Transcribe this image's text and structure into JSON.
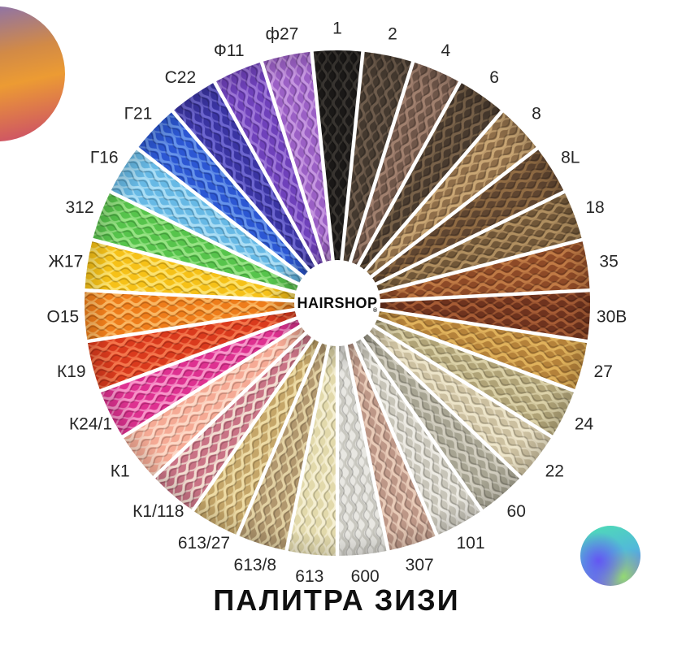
{
  "page_title": "ПАЛИТРА ЗИЗИ",
  "center_logo": {
    "text": "HAIRSHOP",
    "trademark": "®"
  },
  "chart_data": {
    "type": "pie",
    "title": "ПАЛИТРА ЗИЗИ",
    "center_label": "HAIRSHOP",
    "layout": {
      "start_angle_deg": -90,
      "direction": "clockwise",
      "equal_slices": true,
      "inner_radius_px": 53,
      "outer_radius_px": 311,
      "label_position": "outside",
      "gap_color": "#ffffff"
    },
    "segments": [
      {
        "label": "1",
        "color": "#1a1817",
        "highlight": "#383430"
      },
      {
        "label": "2",
        "color": "#44392f",
        "highlight": "#6e5c4c"
      },
      {
        "label": "4",
        "color": "#6f5649",
        "highlight": "#a1806e"
      },
      {
        "label": "6",
        "color": "#483a2e",
        "highlight": "#786149"
      },
      {
        "label": "8",
        "color": "#8f6e49",
        "highlight": "#c9a674"
      },
      {
        "label": "8L",
        "color": "#5f4530",
        "highlight": "#916c44"
      },
      {
        "label": "18",
        "color": "#715738",
        "highlight": "#b08f60"
      },
      {
        "label": "35",
        "color": "#8e4a27",
        "highlight": "#c07a45"
      },
      {
        "label": "30B",
        "color": "#6f331e",
        "highlight": "#a65c35"
      },
      {
        "label": "27",
        "color": "#b5823a",
        "highlight": "#e0b25c"
      },
      {
        "label": "24",
        "color": "#b0a377",
        "highlight": "#dbd1a8"
      },
      {
        "label": "22",
        "color": "#ccc0a0",
        "highlight": "#ede5ca"
      },
      {
        "label": "60",
        "color": "#a7a492",
        "highlight": "#d2cec0"
      },
      {
        "label": "101",
        "color": "#c8c5b9",
        "highlight": "#edebe4"
      },
      {
        "label": "307",
        "color": "#bd9787",
        "highlight": "#e9ccb9"
      },
      {
        "label": "600",
        "color": "#e8e7e2",
        "highlight": "#c8c7bf"
      },
      {
        "label": "613",
        "color": "#e2d9ab",
        "highlight": "#f5efd2"
      },
      {
        "label": "613/8",
        "color": "#b1976e",
        "highlight": "#e3d2a4"
      },
      {
        "label": "613/27",
        "color": "#c5a669",
        "highlight": "#eedca6"
      },
      {
        "label": "К1/118",
        "color": "#c97385",
        "highlight": "#f3ded2"
      },
      {
        "label": "К1",
        "color": "#f5aa95",
        "highlight": "#fdd8c6"
      },
      {
        "label": "К24/1",
        "color": "#de3190",
        "highlight": "#f795c9"
      },
      {
        "label": "К19",
        "color": "#da3a1d",
        "highlight": "#f4764c"
      },
      {
        "label": "О15",
        "color": "#ee7d1b",
        "highlight": "#fab662"
      },
      {
        "label": "Ж17",
        "color": "#f6c118",
        "highlight": "#fce26e"
      },
      {
        "label": "312",
        "color": "#57c44c",
        "highlight": "#97e384"
      },
      {
        "label": "Г16",
        "color": "#67b9e5",
        "highlight": "#abdef5"
      },
      {
        "label": "Г21",
        "color": "#2c57d3",
        "highlight": "#6693ea"
      },
      {
        "label": "С22",
        "color": "#3a34a2",
        "highlight": "#6d66d0"
      },
      {
        "label": "Ф11",
        "color": "#6f41bb",
        "highlight": "#9d76d8"
      },
      {
        "label": "ф27",
        "color": "#9b60c5",
        "highlight": "#c596e0"
      }
    ]
  },
  "decor": {
    "top_left_circle_gradient": [
      "#8570b4",
      "#d28a46",
      "#ec9b33",
      "#cc4f68"
    ],
    "bottom_right_circle_gradient": [
      "#4fd6bb",
      "#52b9d9",
      "#7a64e6",
      "#6456f2",
      "#93d973"
    ]
  }
}
